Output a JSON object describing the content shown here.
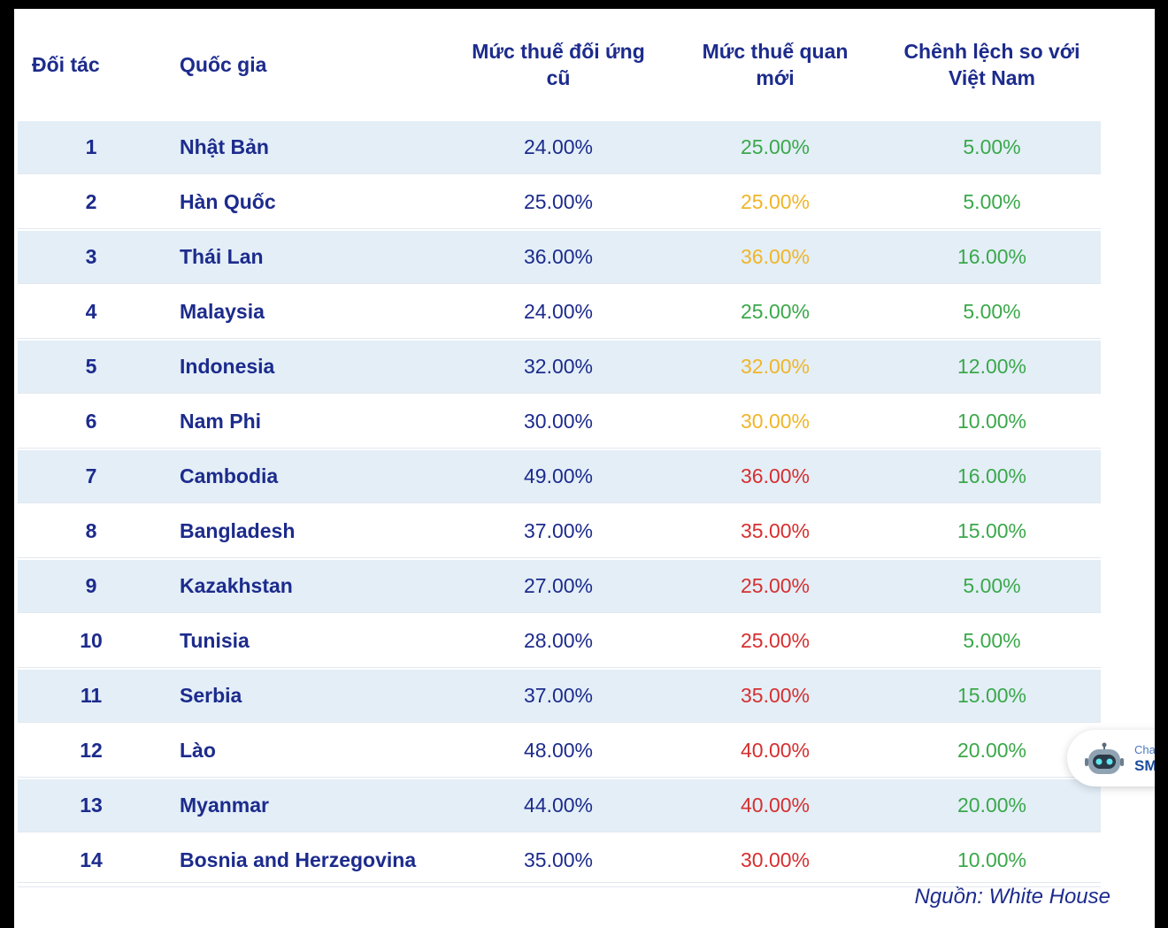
{
  "table": {
    "headers": {
      "partner": "Đối tác",
      "country": "Quốc gia",
      "old_rate": [
        "Mức thuế đối ứng",
        "cũ"
      ],
      "new_rate": [
        "Mức thuế quan",
        "mới"
      ],
      "diff": [
        "Chênh lệch so với",
        "Việt Nam"
      ]
    },
    "rows": [
      {
        "idx": "1",
        "country": "Nhật Bản",
        "old": "24.00%",
        "new": "25.00%",
        "new_color": "green",
        "diff": "5.00%"
      },
      {
        "idx": "2",
        "country": "Hàn Quốc",
        "old": "25.00%",
        "new": "25.00%",
        "new_color": "yellow",
        "diff": "5.00%"
      },
      {
        "idx": "3",
        "country": "Thái Lan",
        "old": "36.00%",
        "new": "36.00%",
        "new_color": "yellow",
        "diff": "16.00%"
      },
      {
        "idx": "4",
        "country": "Malaysia",
        "old": "24.00%",
        "new": "25.00%",
        "new_color": "green",
        "diff": "5.00%"
      },
      {
        "idx": "5",
        "country": "Indonesia",
        "old": "32.00%",
        "new": "32.00%",
        "new_color": "yellow",
        "diff": "12.00%"
      },
      {
        "idx": "6",
        "country": "Nam Phi",
        "old": "30.00%",
        "new": "30.00%",
        "new_color": "yellow",
        "diff": "10.00%"
      },
      {
        "idx": "7",
        "country": "Cambodia",
        "old": "49.00%",
        "new": "36.00%",
        "new_color": "red",
        "diff": "16.00%"
      },
      {
        "idx": "8",
        "country": "Bangladesh",
        "old": "37.00%",
        "new": "35.00%",
        "new_color": "red",
        "diff": "15.00%"
      },
      {
        "idx": "9",
        "country": "Kazakhstan",
        "old": "27.00%",
        "new": "25.00%",
        "new_color": "red",
        "diff": "5.00%"
      },
      {
        "idx": "10",
        "country": "Tunisia",
        "old": "28.00%",
        "new": "25.00%",
        "new_color": "red",
        "diff": "5.00%"
      },
      {
        "idx": "11",
        "country": "Serbia",
        "old": "37.00%",
        "new": "35.00%",
        "new_color": "red",
        "diff": "15.00%"
      },
      {
        "idx": "12",
        "country": "Lào",
        "old": "48.00%",
        "new": "40.00%",
        "new_color": "red",
        "diff": "20.00%"
      },
      {
        "idx": "13",
        "country": "Myanmar",
        "old": "44.00%",
        "new": "40.00%",
        "new_color": "red",
        "diff": "20.00%"
      },
      {
        "idx": "14",
        "country": "Bosnia and Herzegovina",
        "old": "35.00%",
        "new": "30.00%",
        "new_color": "red",
        "diff": "10.00%"
      }
    ],
    "diff_color": "green"
  },
  "source": "Nguồn: White House",
  "chat_widget": {
    "line1": "Cha",
    "line2": "SM",
    "icon": "chatbot-icon"
  },
  "colors": {
    "text_navy": "#1c2b8c",
    "row_stripe": "#e3eef7",
    "green": "#3aa84a",
    "yellow": "#f0b528",
    "red": "#d62f2f"
  }
}
